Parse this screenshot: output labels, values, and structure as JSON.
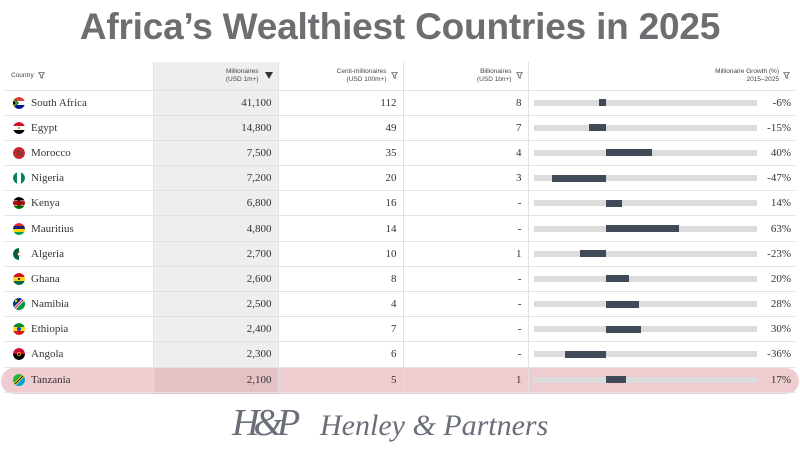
{
  "title": "Africa’s Wealthiest Countries in 2025",
  "columns": {
    "country": "Country",
    "millionaires": [
      "Millionaires",
      "(USD 1m+)"
    ],
    "centi": [
      "Centi-millionaires",
      "(USD 100m+)"
    ],
    "billionaires": [
      "Billionaires",
      "(USD 1bn+)"
    ],
    "growth": [
      "Millionaire Growth (%)",
      "2015–2025"
    ]
  },
  "highlighted_row": "Tanzania",
  "colors": {
    "bar": "#414a59",
    "track": "#dcdcdc",
    "highlight": "#d67880",
    "title": "#6d6e71"
  },
  "chart_data": {
    "type": "table",
    "title": "Africa’s Wealthiest Countries in 2025",
    "rows": [
      {
        "country": "South Africa",
        "flag": "south-africa-flag-icon",
        "millionaires": "41,100",
        "centi": "112",
        "billionaires": "8",
        "growth": -6,
        "growth_label": "-6%"
      },
      {
        "country": "Egypt",
        "flag": "egypt-flag-icon",
        "millionaires": "14,800",
        "centi": "49",
        "billionaires": "7",
        "growth": -15,
        "growth_label": "-15%"
      },
      {
        "country": "Morocco",
        "flag": "morocco-flag-icon",
        "millionaires": "7,500",
        "centi": "35",
        "billionaires": "4",
        "growth": 40,
        "growth_label": "40%"
      },
      {
        "country": "Nigeria",
        "flag": "nigeria-flag-icon",
        "millionaires": "7,200",
        "centi": "20",
        "billionaires": "3",
        "growth": -47,
        "growth_label": "-47%"
      },
      {
        "country": "Kenya",
        "flag": "kenya-flag-icon",
        "millionaires": "6,800",
        "centi": "16",
        "billionaires": "-",
        "growth": 14,
        "growth_label": "14%"
      },
      {
        "country": "Mauritius",
        "flag": "mauritius-flag-icon",
        "millionaires": "4,800",
        "centi": "14",
        "billionaires": "-",
        "growth": 63,
        "growth_label": "63%"
      },
      {
        "country": "Algeria",
        "flag": "algeria-flag-icon",
        "millionaires": "2,700",
        "centi": "10",
        "billionaires": "1",
        "growth": -23,
        "growth_label": "-23%"
      },
      {
        "country": "Ghana",
        "flag": "ghana-flag-icon",
        "millionaires": "2,600",
        "centi": "8",
        "billionaires": "-",
        "growth": 20,
        "growth_label": "20%"
      },
      {
        "country": "Namibia",
        "flag": "namibia-flag-icon",
        "millionaires": "2,500",
        "centi": "4",
        "billionaires": "-",
        "growth": 28,
        "growth_label": "28%"
      },
      {
        "country": "Ethiopia",
        "flag": "ethiopia-flag-icon",
        "millionaires": "2,400",
        "centi": "7",
        "billionaires": "-",
        "growth": 30,
        "growth_label": "30%"
      },
      {
        "country": "Angola",
        "flag": "angola-flag-icon",
        "millionaires": "2,300",
        "centi": "6",
        "billionaires": "-",
        "growth": -36,
        "growth_label": "-36%"
      },
      {
        "country": "Tanzania",
        "flag": "tanzania-flag-icon",
        "millionaires": "2,100",
        "centi": "5",
        "billionaires": "1",
        "growth": 17,
        "growth_label": "17%"
      }
    ],
    "growth_range": [
      -63,
      130
    ]
  },
  "logo": {
    "monogram": "H&P",
    "name": "Henley & Partners"
  }
}
